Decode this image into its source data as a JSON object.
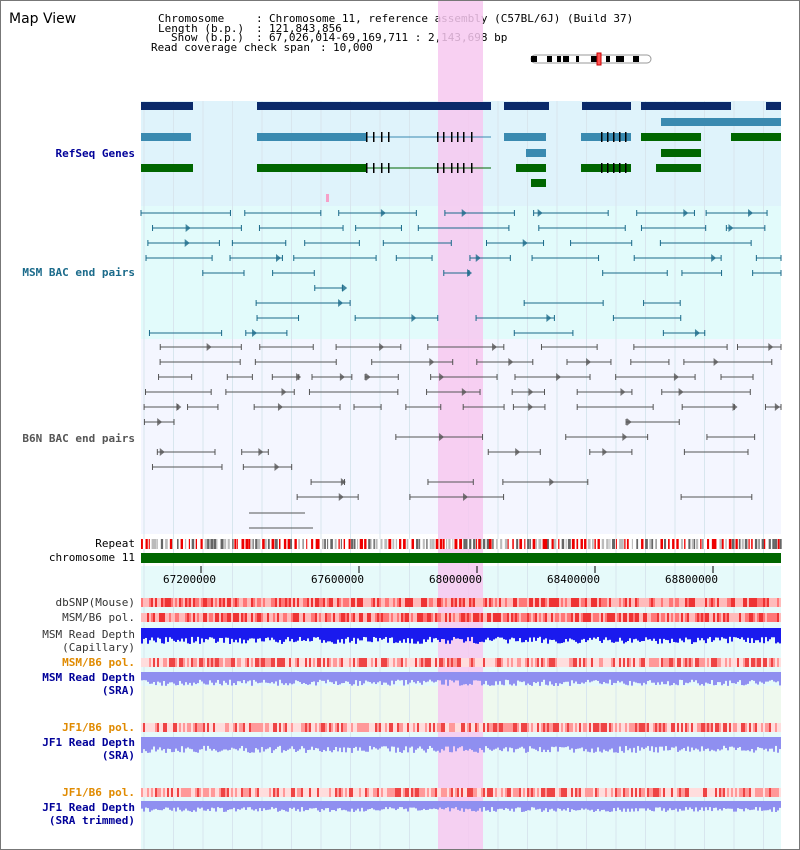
{
  "page": {
    "title": "Map View"
  },
  "header": {
    "chromosome_key": "Chromosome",
    "chromosome_val": "Chromosome 11, reference assembly (C57BL/6J) (Build 37)",
    "length_key": "Length (b.p.)",
    "length_val": "121,843,856",
    "show_key": "Show (b.p.)",
    "show_val": "67,026,014-69,169,711 : 2,143,698 bp",
    "span_key": "Read coverage check span",
    "span_val": "10,000"
  },
  "tracks": {
    "refseq": "RefSeq Genes",
    "msm_bac": "MSM BAC end pairs",
    "b6n_bac": "B6N BAC end pairs",
    "repeat": "Repeat",
    "chromosome": "chromosome 11",
    "dbsnp": "dbSNP(Mouse)",
    "msm_b6_pol_1": "MSM/B6 pol.",
    "msm_read_depth_cap_1": "MSM Read Depth",
    "msm_read_depth_cap_2": "(Capillary)",
    "msm_b6_pol_2": "MSM/B6 pol.",
    "msm_read_depth_sra_1": "MSM Read Depth",
    "msm_read_depth_sra_2": "(SRA)",
    "jf1_b6_pol_1": "JF1/B6 pol.",
    "jf1_read_depth_sra_1": "JF1 Read Depth",
    "jf1_read_depth_sra_2": "(SRA)",
    "jf1_b6_pol_2": "JF1/B6 pol.",
    "jf1_read_depth_trim_1": "JF1 Read Depth",
    "jf1_read_depth_trim_2": "(SRA trimmed)"
  },
  "axis": {
    "ticks": [
      "67200000",
      "67600000",
      "68000000",
      "68400000",
      "68800000"
    ]
  },
  "colors": {
    "refseq_dark": "#0a2a6a",
    "refseq_mid": "#3a8ab0",
    "refseq_green": "#006600",
    "msm_bac": "#1a6a8a",
    "b6n_bac": "#555555",
    "highlight": "#f7c8f0",
    "refseq_bg": "#dff3fb",
    "msm_bg": "#e2fbfb",
    "b6n_bg": "#f4f6ff",
    "chromosome": "#006600",
    "depth_cap": "#1a1aee",
    "depth_sra": "#8f8ff0",
    "pol_orange_label": "#e08a00",
    "label_blue": "#000099"
  }
}
